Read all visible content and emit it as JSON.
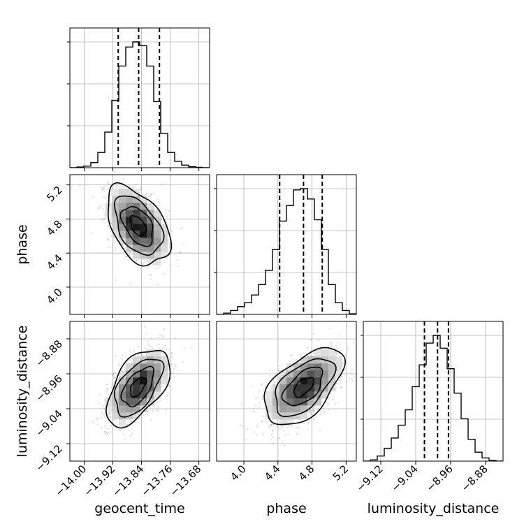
{
  "chart_data": {
    "type": "corner",
    "parameters": [
      "geocent_time",
      "phase",
      "luminosity_distance"
    ],
    "grid": true,
    "panels": [
      {
        "id": "hist-geocent_time",
        "type": "histogram",
        "parameter": "geocent_time",
        "xlim": [
          -14.04,
          -13.65
        ],
        "bin_edges": [
          -14.04,
          -14.0205,
          -14.001,
          -13.9815,
          -13.962,
          -13.9425,
          -13.923,
          -13.9035,
          -13.884,
          -13.8645,
          -13.845,
          -13.8255,
          -13.806,
          -13.7865,
          -13.767,
          -13.7475,
          -13.728,
          -13.7085,
          -13.689,
          -13.6695,
          -13.65
        ],
        "counts": [
          0,
          0.5,
          1.2,
          4,
          12,
          28,
          53,
          80,
          95,
          99,
          96,
          80,
          52,
          27,
          12,
          5,
          2,
          0.7,
          0.3,
          0
        ],
        "quantile_lines": [
          -13.905,
          -13.848,
          -13.79
        ],
        "yticks_relative": [
          0.3,
          0.6,
          0.9
        ]
      },
      {
        "id": "hist-phase",
        "type": "histogram",
        "parameter": "phase",
        "xlim": [
          3.68,
          5.32
        ],
        "bin_edges": [
          3.68,
          3.762,
          3.844,
          3.926,
          4.008,
          4.09,
          4.172,
          4.254,
          4.336,
          4.418,
          4.5,
          4.582,
          4.664,
          4.746,
          4.828,
          4.91,
          4.992,
          5.074,
          5.156,
          5.238,
          5.32
        ],
        "counts": [
          0,
          1,
          3,
          6,
          9,
          15,
          23,
          34,
          50,
          72,
          84,
          96,
          97,
          89,
          73,
          50,
          23,
          9,
          3,
          0.5
        ],
        "quantile_lines": [
          4.42,
          4.7,
          4.92
        ],
        "yticks_relative": [
          0.3,
          0.6,
          0.9
        ]
      },
      {
        "id": "hist-luminosity_distance",
        "type": "histogram",
        "parameter": "luminosity_distance",
        "xlim": [
          -9.16,
          -8.84
        ],
        "bin_edges": [
          -9.16,
          -9.144,
          -9.128,
          -9.112,
          -9.096,
          -9.08,
          -9.064,
          -9.048,
          -9.032,
          -9.016,
          -9.0,
          -8.984,
          -8.968,
          -8.952,
          -8.936,
          -8.92,
          -8.904,
          -8.888,
          -8.872,
          -8.856,
          -8.84
        ],
        "counts": [
          0,
          1,
          4,
          10,
          18,
          28,
          40,
          58,
          75,
          92,
          98,
          88,
          72,
          53,
          33,
          17,
          7,
          2.5,
          0.5,
          0
        ],
        "quantile_lines": [
          -9.02,
          -8.99,
          -8.965
        ],
        "yticks_relative": [
          0.3,
          0.6,
          0.9
        ]
      },
      {
        "id": "scatter-phase-vs-geocent_time",
        "type": "2d_density",
        "x_param": "geocent_time",
        "y_param": "phase",
        "xlim": [
          -14.04,
          -13.65
        ],
        "ylim": [
          3.68,
          5.32
        ],
        "center": [
          -13.85,
          4.72
        ],
        "sigma": [
          0.04,
          0.21
        ],
        "correlation": -0.45,
        "contour_levels_sigma": [
          0.5,
          1.0,
          1.5,
          2.0
        ]
      },
      {
        "id": "scatter-luminosity_distance-vs-geocent_time",
        "type": "2d_density",
        "x_param": "geocent_time",
        "y_param": "luminosity_distance",
        "xlim": [
          -14.04,
          -13.65
        ],
        "ylim": [
          -9.16,
          -8.84
        ],
        "center": [
          -13.85,
          -8.99
        ],
        "sigma": [
          0.04,
          0.04
        ],
        "correlation": 0.55,
        "contour_levels_sigma": [
          0.5,
          1.0,
          1.5,
          2.0
        ]
      },
      {
        "id": "scatter-luminosity_distance-vs-phase",
        "type": "2d_density",
        "x_param": "phase",
        "y_param": "luminosity_distance",
        "xlim": [
          3.68,
          5.32
        ],
        "ylim": [
          -9.16,
          -8.84
        ],
        "center": [
          4.7,
          -8.99
        ],
        "sigma": [
          0.21,
          0.04
        ],
        "correlation": 0.55,
        "contour_levels_sigma": [
          0.5,
          1.0,
          1.5,
          2.0
        ]
      }
    ],
    "axes": {
      "geocent_time": {
        "label": "geocent_time",
        "ticks": [
          -14.0,
          -13.92,
          -13.84,
          -13.76,
          -13.68
        ],
        "tick_labels": [
          "−14.00",
          "−13.92",
          "−13.84",
          "−13.76",
          "−13.68"
        ]
      },
      "phase": {
        "label": "phase",
        "ticks": [
          4.0,
          4.4,
          4.8,
          5.2
        ],
        "tick_labels": [
          "4.0",
          "4.4",
          "4.8",
          "5.2"
        ]
      },
      "luminosity_distance": {
        "label": "luminosity_distance",
        "ticks": [
          -9.12,
          -9.04,
          -8.96,
          -8.88
        ],
        "tick_labels": [
          "−9.12",
          "−9.04",
          "−8.96",
          "−8.88"
        ]
      }
    }
  }
}
